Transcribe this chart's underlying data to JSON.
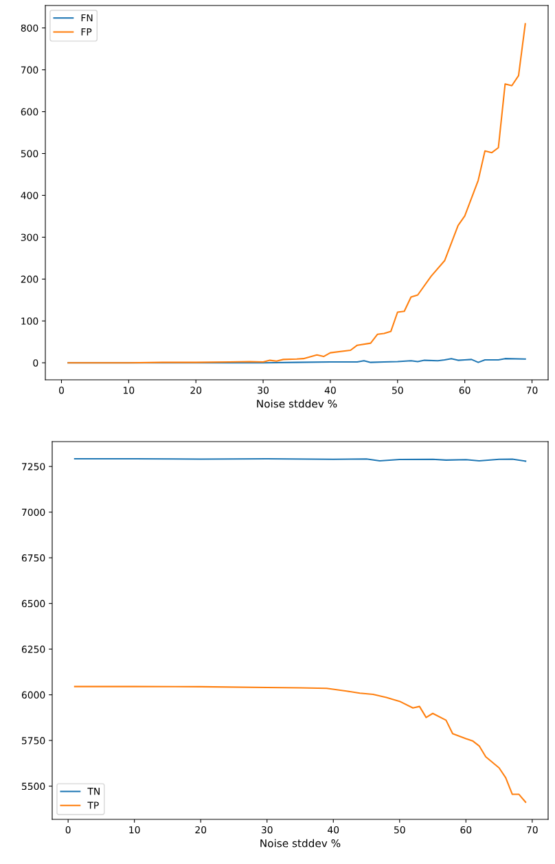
{
  "chart_data": [
    {
      "type": "line",
      "xlabel": "Noise stddev %",
      "xlim": [
        -2.4,
        72.4
      ],
      "xticks": [
        0,
        10,
        20,
        30,
        40,
        50,
        60,
        70
      ],
      "ylim": [
        -40.6,
        853.6
      ],
      "yticks": [
        0,
        100,
        200,
        300,
        400,
        500,
        600,
        700,
        800
      ],
      "grid": false,
      "legend": "top left",
      "series": [
        {
          "name": "FN",
          "color": "#1f77b4",
          "x": [
            1,
            10,
            20,
            30,
            35,
            40,
            44,
            45,
            46,
            48,
            50,
            52,
            53,
            54,
            56,
            57,
            58,
            59,
            60,
            61,
            62,
            63,
            65,
            66,
            69
          ],
          "values": [
            0,
            0,
            0,
            0,
            1,
            2,
            2,
            5,
            1,
            2,
            3,
            5,
            3,
            6,
            5,
            7,
            10,
            6,
            7,
            8,
            1,
            7,
            7,
            10,
            9
          ]
        },
        {
          "name": "FP",
          "color": "#ff7f0e",
          "x": [
            1,
            5,
            10,
            15,
            20,
            25,
            28,
            30,
            31,
            32,
            33,
            35,
            36,
            38,
            39,
            40,
            43,
            44,
            46,
            47,
            48,
            49,
            50,
            51,
            52,
            53,
            55,
            57,
            59,
            60,
            62,
            63,
            64,
            65,
            66,
            67,
            68,
            69
          ],
          "values": [
            0,
            0,
            0,
            1,
            1,
            2,
            3,
            2,
            6,
            4,
            8,
            9,
            10,
            19,
            15,
            24,
            30,
            42,
            47,
            68,
            70,
            75,
            121,
            123,
            157,
            162,
            207,
            244,
            328,
            351,
            436,
            506,
            502,
            514,
            666,
            662,
            686,
            810
          ]
        }
      ]
    },
    {
      "type": "line",
      "xlabel": "Noise stddev %",
      "xlim": [
        -2.4,
        72.4
      ],
      "xticks": [
        0,
        10,
        20,
        30,
        40,
        50,
        60,
        70
      ],
      "ylim": [
        5318,
        7386
      ],
      "yticks": [
        5500,
        5750,
        6000,
        6250,
        6500,
        6750,
        7000,
        7250
      ],
      "grid": false,
      "legend": "bottom left",
      "series": [
        {
          "name": "TN",
          "color": "#1f77b4",
          "x": [
            1,
            10,
            20,
            30,
            40,
            45,
            47,
            50,
            55,
            57,
            60,
            62,
            65,
            67,
            69
          ],
          "values": [
            7292,
            7292,
            7290,
            7292,
            7289,
            7291,
            7281,
            7288,
            7289,
            7285,
            7287,
            7281,
            7289,
            7290,
            7279
          ]
        },
        {
          "name": "TP",
          "color": "#ff7f0e",
          "x": [
            1,
            10,
            20,
            30,
            35,
            39,
            42,
            44,
            46,
            48,
            50,
            52,
            53,
            54,
            55,
            57,
            58,
            60,
            61,
            62,
            63,
            65,
            66,
            67,
            68,
            69
          ],
          "values": [
            6045,
            6045,
            6044,
            6040,
            6038,
            6035,
            6020,
            6009,
            6002,
            5985,
            5964,
            5928,
            5936,
            5876,
            5898,
            5861,
            5787,
            5760,
            5748,
            5720,
            5660,
            5600,
            5546,
            5455,
            5455,
            5412
          ]
        }
      ]
    }
  ]
}
